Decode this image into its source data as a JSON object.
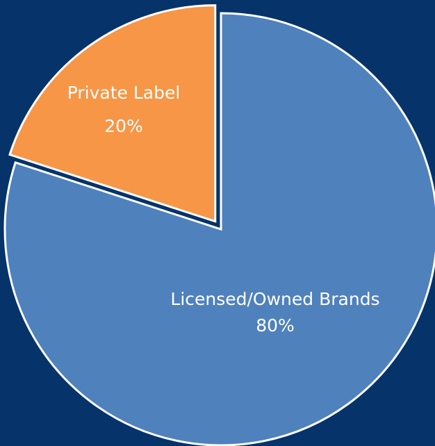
{
  "chart_data": {
    "type": "pie",
    "categories": [
      "Licensed/Owned Brands",
      "Private Label"
    ],
    "values": [
      80,
      20
    ],
    "value_labels": [
      "80%",
      "20%"
    ],
    "colors": [
      "#4f81bd",
      "#f79646"
    ]
  }
}
